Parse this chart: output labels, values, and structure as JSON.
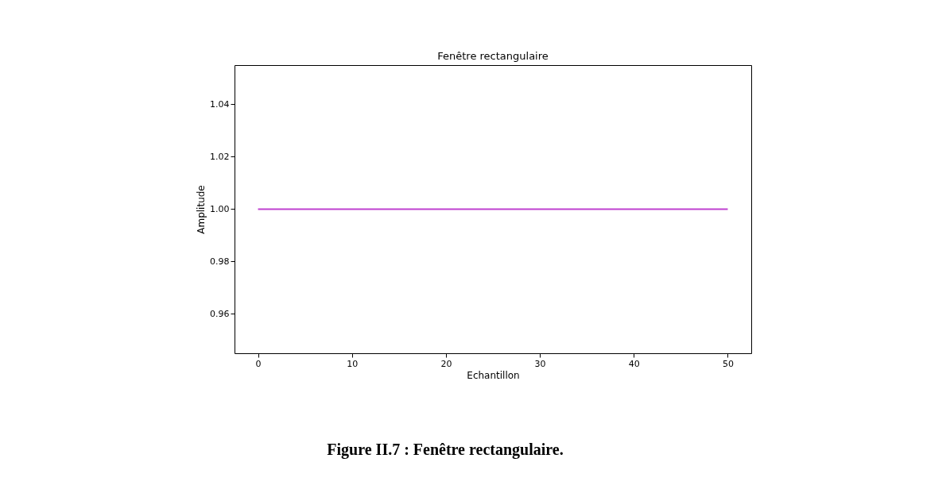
{
  "chart_data": {
    "type": "line",
    "title": "Fenêtre rectangulaire",
    "xlabel": "Echantillon",
    "ylabel": "Amplitude",
    "x": [
      0,
      50
    ],
    "series": [
      {
        "color": "#bf40d0",
        "values": [
          1.0,
          1.0
        ]
      }
    ],
    "xlim": [
      -2.5,
      52.5
    ],
    "xticks": [
      0,
      10,
      20,
      30,
      40,
      50
    ],
    "ylim": [
      0.945,
      1.055
    ],
    "yticks": [
      0.96,
      0.98,
      {
        "value": 1.0,
        "label": "1.00"
      },
      1.02,
      1.04
    ],
    "grid": false,
    "marker": "none",
    "line_style": "solid",
    "annotations": [
      "Figure II.7 : Fenêtre rectangulaire."
    ]
  }
}
